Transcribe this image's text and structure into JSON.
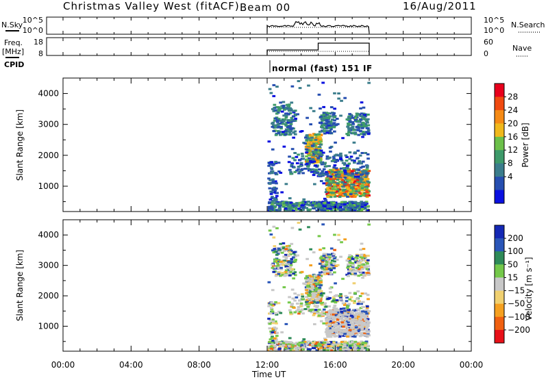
{
  "header": {
    "title": "Christmas Valley West (fitACF)",
    "beam": "Beam 00",
    "date": "16/Aug/2011"
  },
  "strips": {
    "nsky": {
      "label": "N.Sky",
      "left_ticks": [
        "10^5",
        "10^0"
      ],
      "right_ticks": [
        "10^5",
        "10^0"
      ],
      "right_label": "N.Search"
    },
    "freq": {
      "label_line1": "Freq.",
      "label_line2": "[MHz]",
      "left_ticks": [
        "18",
        "8"
      ],
      "right_ticks": [
        "60",
        "0"
      ],
      "right_label": "Nave"
    },
    "cpid": {
      "label": "CPID",
      "mode_text": "normal (fast) 151 IF"
    }
  },
  "time_axis": {
    "label": "Time UT",
    "ticks": [
      "00:00",
      "04:00",
      "08:00",
      "12:00",
      "16:00",
      "20:00",
      "00:00"
    ]
  },
  "chart_data": [
    {
      "type": "heatmap",
      "title": "",
      "xlabel": "Time UT",
      "ylabel": "Slant Range [km]",
      "x_ticks": [
        "00:00",
        "04:00",
        "08:00",
        "12:00",
        "16:00",
        "20:00",
        "00:00"
      ],
      "y_ticks": [
        1000,
        2000,
        3000,
        4000
      ],
      "xlim_hours": [
        0,
        24
      ],
      "ylim_km": [
        180,
        4500
      ],
      "data_window_hours": [
        12,
        18
      ],
      "colorbar": {
        "label": "Power [dB]",
        "ticks": [
          "28",
          "24",
          "20",
          "16",
          "12",
          "8",
          "4"
        ],
        "colors": [
          "#e8001c",
          "#f04a10",
          "#f58a15",
          "#f0b81c",
          "#6cc04a",
          "#3e9a6a",
          "#3b7d8c",
          "#264eb0",
          "#0a10e0"
        ]
      }
    },
    {
      "type": "heatmap",
      "title": "",
      "xlabel": "Time UT",
      "ylabel": "Slant Range [km]",
      "x_ticks": [
        "00:00",
        "04:00",
        "08:00",
        "12:00",
        "16:00",
        "20:00",
        "00:00"
      ],
      "y_ticks": [
        1000,
        2000,
        3000,
        4000
      ],
      "xlim_hours": [
        0,
        24
      ],
      "ylim_km": [
        180,
        4500
      ],
      "data_window_hours": [
        12,
        18
      ],
      "colorbar": {
        "label": "Velocity [m s⁻¹]",
        "ticks": [
          "200",
          "100",
          "50",
          "15",
          "−15",
          "−50",
          "−100",
          "−200"
        ],
        "colors": [
          "#1428b4",
          "#2a56b8",
          "#2e8a58",
          "#74c84a",
          "#c8c8c8",
          "#f0d070",
          "#f5a020",
          "#f06010",
          "#e81018"
        ]
      }
    }
  ]
}
